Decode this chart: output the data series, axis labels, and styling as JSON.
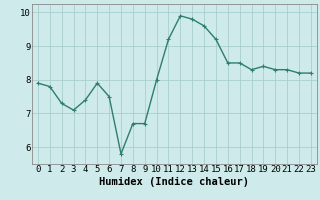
{
  "x": [
    0,
    1,
    2,
    3,
    4,
    5,
    6,
    7,
    8,
    9,
    10,
    11,
    12,
    13,
    14,
    15,
    16,
    17,
    18,
    19,
    20,
    21,
    22,
    23
  ],
  "y": [
    7.9,
    7.8,
    7.3,
    7.1,
    7.4,
    7.9,
    7.5,
    5.8,
    6.7,
    6.7,
    8.0,
    9.2,
    9.9,
    9.8,
    9.6,
    9.2,
    8.5,
    8.5,
    8.3,
    8.4,
    8.3,
    8.3,
    8.2,
    8.2
  ],
  "line_color": "#2e7d6e",
  "marker": "+",
  "marker_color": "#2e7d6e",
  "bg_color": "#ceeaea",
  "grid_color": "#aacece",
  "xlabel": "Humidex (Indice chaleur)",
  "ylim": [
    5.5,
    10.25
  ],
  "xlim": [
    -0.5,
    23.5
  ],
  "yticks": [
    6,
    7,
    8,
    9,
    10
  ],
  "xticks": [
    0,
    1,
    2,
    3,
    4,
    5,
    6,
    7,
    8,
    9,
    10,
    11,
    12,
    13,
    14,
    15,
    16,
    17,
    18,
    19,
    20,
    21,
    22,
    23
  ],
  "linewidth": 1.0,
  "markersize": 3,
  "xlabel_fontsize": 7.5,
  "tick_fontsize": 6.5
}
